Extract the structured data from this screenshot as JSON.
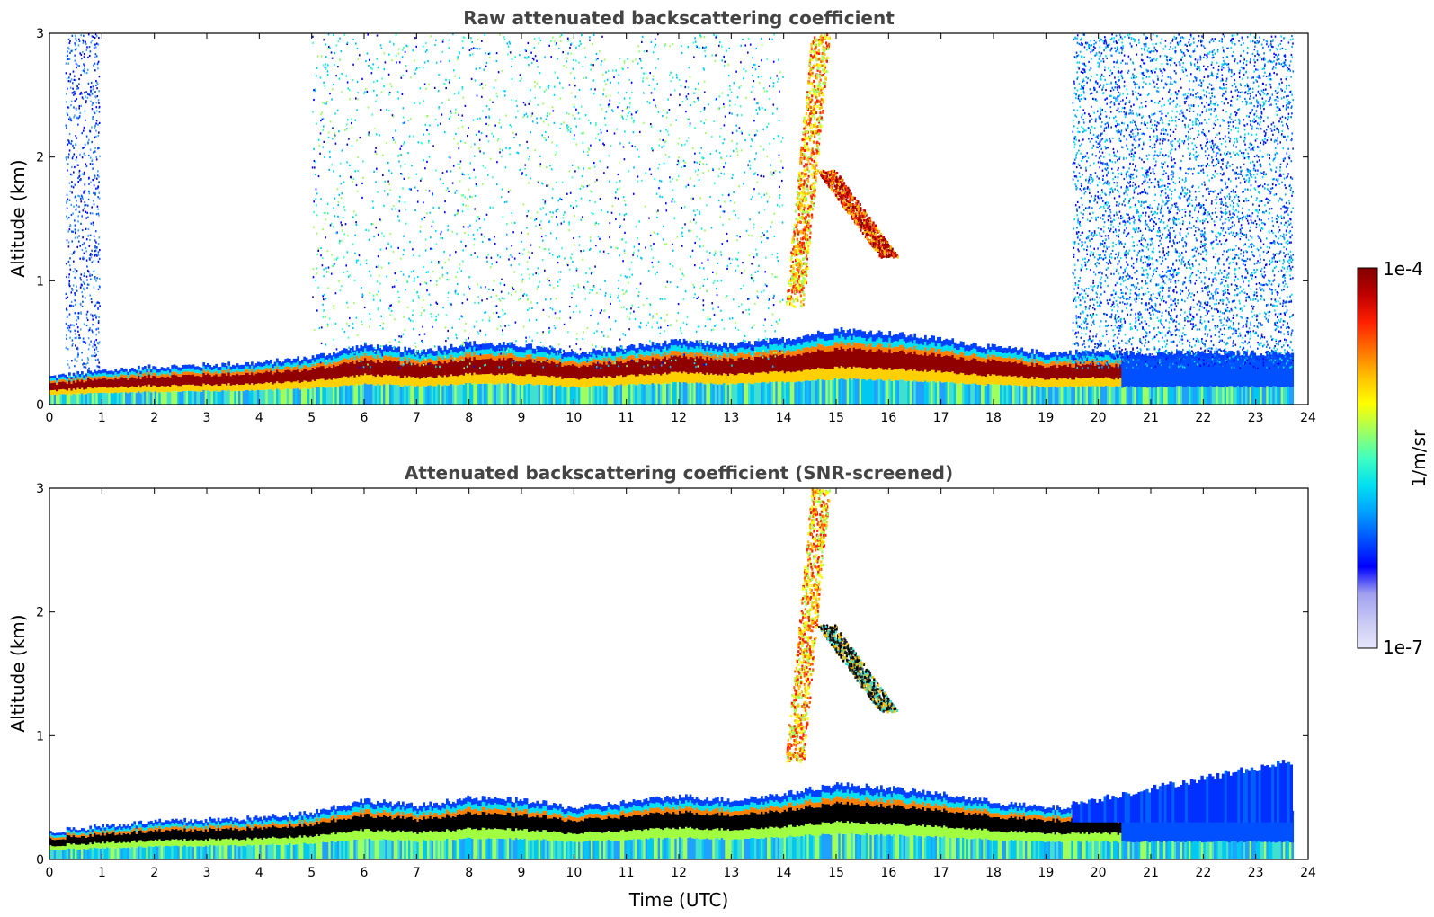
{
  "chart_data": [
    {
      "type": "heatmap",
      "title": "Raw attenuated backscattering coefficient",
      "xlabel": "",
      "ylabel": "Altitude (km)",
      "xlim": [
        0,
        24
      ],
      "ylim": [
        0,
        3
      ],
      "xticks": [
        "0",
        "1",
        "2",
        "3",
        "4",
        "5",
        "6",
        "7",
        "8",
        "9",
        "10",
        "11",
        "12",
        "13",
        "14",
        "15",
        "16",
        "17",
        "18",
        "19",
        "20",
        "21",
        "22",
        "23",
        "24"
      ],
      "yticks": [
        "0",
        "1",
        "2",
        "3"
      ],
      "data_end_time": 23.7,
      "boundary_layer_altitude": [
        [
          0,
          0.14
        ],
        [
          1,
          0.17
        ],
        [
          2,
          0.19
        ],
        [
          3,
          0.2
        ],
        [
          4,
          0.21
        ],
        [
          5,
          0.24
        ],
        [
          6,
          0.3
        ],
        [
          7,
          0.27
        ],
        [
          8,
          0.31
        ],
        [
          9,
          0.3
        ],
        [
          10,
          0.26
        ],
        [
          11,
          0.29
        ],
        [
          12,
          0.32
        ],
        [
          13,
          0.3
        ],
        [
          14,
          0.33
        ],
        [
          15,
          0.38
        ],
        [
          16,
          0.36
        ],
        [
          17,
          0.33
        ],
        [
          18,
          0.29
        ],
        [
          19,
          0.26
        ],
        [
          20,
          0.27
        ],
        [
          20.4,
          0.26
        ]
      ],
      "plume_features": [
        {
          "time_start": 14.0,
          "time_end": 15.0,
          "alt_bottom": 0.8,
          "alt_top": 3.0
        },
        {
          "time_start": 14.8,
          "time_end": 16.0,
          "alt_bottom": 1.2,
          "alt_top": 1.9
        }
      ],
      "noise_regions": [
        {
          "time_start": 0.3,
          "time_end": 0.95,
          "density": "medium"
        },
        {
          "time_start": 5.0,
          "time_end": 14.0,
          "density": "low"
        },
        {
          "time_start": 19.5,
          "time_end": 23.7,
          "density": "high"
        }
      ]
    },
    {
      "type": "heatmap",
      "title": "Attenuated backscattering coefficient (SNR-screened)",
      "xlabel": "Time (UTC)",
      "ylabel": "Altitude (km)",
      "xlim": [
        0,
        24
      ],
      "ylim": [
        0,
        3
      ],
      "xticks": [
        "0",
        "1",
        "2",
        "3",
        "4",
        "5",
        "6",
        "7",
        "8",
        "9",
        "10",
        "11",
        "12",
        "13",
        "14",
        "15",
        "16",
        "17",
        "18",
        "19",
        "20",
        "21",
        "22",
        "23",
        "24"
      ],
      "yticks": [
        "0",
        "1",
        "2",
        "3"
      ],
      "data_end_time": 23.7,
      "boundary_layer_altitude": [
        [
          0,
          0.14
        ],
        [
          1,
          0.17
        ],
        [
          2,
          0.19
        ],
        [
          3,
          0.2
        ],
        [
          4,
          0.21
        ],
        [
          5,
          0.24
        ],
        [
          6,
          0.3
        ],
        [
          7,
          0.27
        ],
        [
          8,
          0.31
        ],
        [
          9,
          0.3
        ],
        [
          10,
          0.26
        ],
        [
          11,
          0.29
        ],
        [
          12,
          0.32
        ],
        [
          13,
          0.3
        ],
        [
          14,
          0.33
        ],
        [
          15,
          0.38
        ],
        [
          16,
          0.36
        ],
        [
          17,
          0.33
        ],
        [
          18,
          0.29
        ],
        [
          19,
          0.26
        ],
        [
          20,
          0.27
        ],
        [
          20.4,
          0.26
        ]
      ],
      "plume_features": [
        {
          "time_start": 14.0,
          "time_end": 15.0,
          "alt_bottom": 0.8,
          "alt_top": 3.0
        },
        {
          "time_start": 14.8,
          "time_end": 16.0,
          "alt_bottom": 1.2,
          "alt_top": 1.9
        }
      ],
      "noise_regions": [
        {
          "time_start": 19.5,
          "time_end": 23.7,
          "density": "screened-blue"
        }
      ]
    }
  ],
  "colorbar": {
    "max_label": "1e-4",
    "min_label": "1e-7",
    "units_label": "1/m/sr",
    "colors": [
      "#e6e6fa",
      "#c8c8f5",
      "#a0a0f0",
      "#0000ff",
      "#0050ff",
      "#00a0ff",
      "#00e0f0",
      "#40ffc0",
      "#a0ff60",
      "#ffff00",
      "#ffc000",
      "#ff7000",
      "#ff2000",
      "#c00000",
      "#800000"
    ]
  }
}
